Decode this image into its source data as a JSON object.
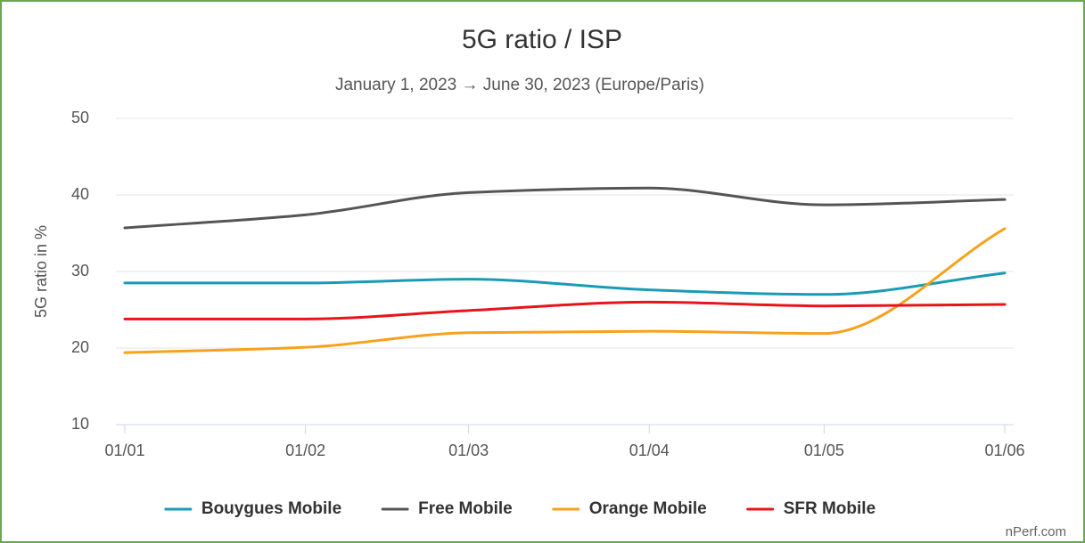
{
  "chart_data": {
    "type": "line",
    "title": "5G ratio / ISP",
    "subtitle": "January 1, 2023 → June 30, 2023 (Europe/Paris)",
    "y_label": "5G ratio in %",
    "credit": "nPerf.com",
    "x": [
      "01/01",
      "01/02",
      "01/03",
      "01/04",
      "01/05",
      "01/06"
    ],
    "xticks": [
      "01/01",
      "01/02",
      "01/03",
      "01/04",
      "01/05",
      "01/06"
    ],
    "ylim": [
      10,
      50
    ],
    "yticks": [
      10,
      20,
      30,
      40,
      50
    ],
    "grid": true,
    "legend": "bottom",
    "series": [
      {
        "name": "Bouygues Mobile",
        "color": "#1a9bb5",
        "values": [
          28.5,
          28.5,
          29.0,
          27.6,
          27.0,
          29.8
        ]
      },
      {
        "name": "Free Mobile",
        "color": "#555555",
        "values": [
          35.7,
          37.4,
          40.3,
          40.9,
          38.7,
          39.4
        ]
      },
      {
        "name": "Orange Mobile",
        "color": "#f7a21b",
        "values": [
          19.4,
          20.1,
          22.0,
          22.2,
          21.9,
          35.6
        ]
      },
      {
        "name": "SFR Mobile",
        "color": "#e8141b",
        "values": [
          23.8,
          23.8,
          24.9,
          26.0,
          25.5,
          25.7
        ]
      }
    ]
  }
}
